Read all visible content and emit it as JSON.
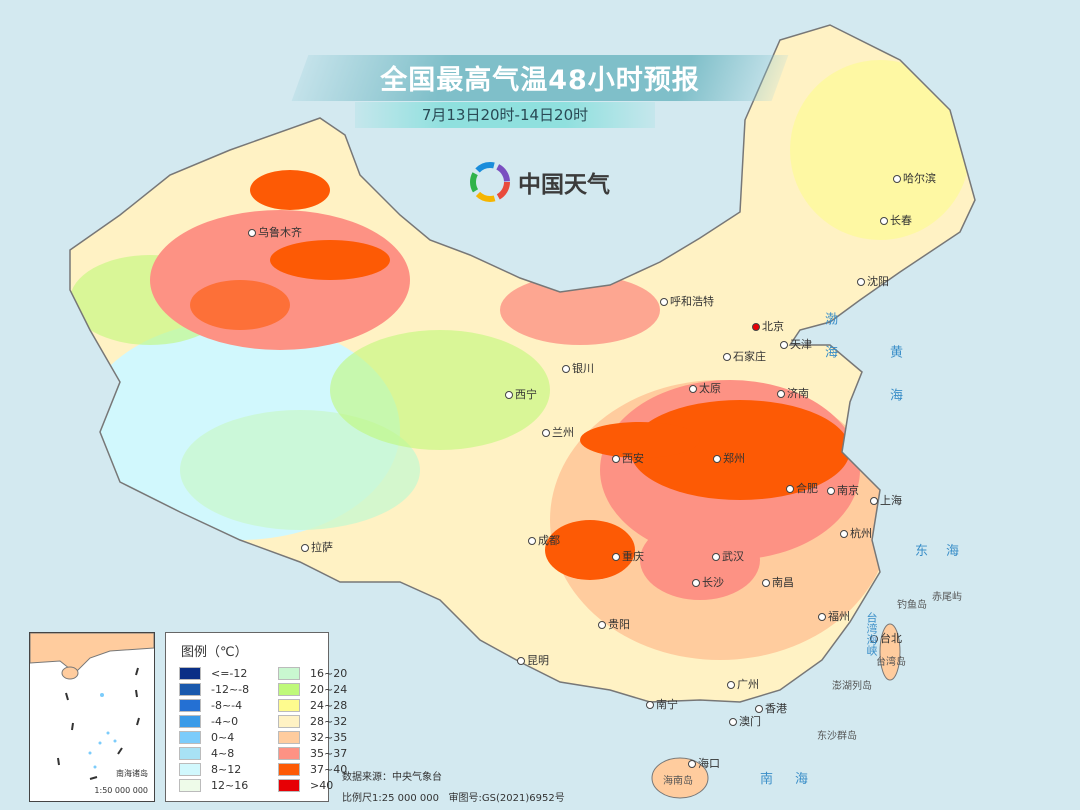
{
  "title": "全国最高气温48小时预报",
  "subtitle": "7月13日20时-14日20时",
  "logo": {
    "text": "中国天气",
    "icon": "china-weather-swirl-logo"
  },
  "cities": [
    {
      "name": "哈尔滨"
    },
    {
      "name": "长春"
    },
    {
      "name": "沈阳"
    },
    {
      "name": "北京"
    },
    {
      "name": "天津"
    },
    {
      "name": "呼和浩特"
    },
    {
      "name": "石家庄"
    },
    {
      "name": "太原"
    },
    {
      "name": "济南"
    },
    {
      "name": "银川"
    },
    {
      "name": "西宁"
    },
    {
      "name": "兰州"
    },
    {
      "name": "西安"
    },
    {
      "name": "郑州"
    },
    {
      "name": "合肥"
    },
    {
      "name": "南京"
    },
    {
      "name": "上海"
    },
    {
      "name": "杭州"
    },
    {
      "name": "武汉"
    },
    {
      "name": "成都"
    },
    {
      "name": "重庆"
    },
    {
      "name": "长沙"
    },
    {
      "name": "南昌"
    },
    {
      "name": "福州"
    },
    {
      "name": "台北"
    },
    {
      "name": "贵阳"
    },
    {
      "name": "昆明"
    },
    {
      "name": "南宁"
    },
    {
      "name": "广州"
    },
    {
      "name": "香港"
    },
    {
      "name": "澳门"
    },
    {
      "name": "海口"
    },
    {
      "name": "拉萨"
    },
    {
      "name": "乌鲁木齐"
    }
  ],
  "seas": {
    "bohai": "渤海",
    "huanghai": "黄海",
    "donghai": "东海",
    "nanhai": "南海",
    "taiwan_strait": "台湾海峡"
  },
  "islands": {
    "diaoyu": "钓鱼岛",
    "chiwei": "赤尾屿",
    "taiwan": "台湾岛",
    "penghu": "澎湖列岛",
    "dongsha": "东沙群岛",
    "hainan": "海南岛"
  },
  "legend": {
    "title": "图例（℃）",
    "items": [
      {
        "label": "<=-12",
        "color": "#0a2f86"
      },
      {
        "label": "-12~-8",
        "color": "#1a59ad"
      },
      {
        "label": "-8~-4",
        "color": "#2470d3"
      },
      {
        "label": "-4~0",
        "color": "#3a9be8"
      },
      {
        "label": "0~4",
        "color": "#7cccfb"
      },
      {
        "label": "4~8",
        "color": "#a8e2f5"
      },
      {
        "label": "8~12",
        "color": "#d1f8fd"
      },
      {
        "label": "12~16",
        "color": "#eefbe9"
      },
      {
        "label": "16~20",
        "color": "#c9f7d0"
      },
      {
        "label": "20~24",
        "color": "#bff97a"
      },
      {
        "label": "24~28",
        "color": "#fefb8e"
      },
      {
        "label": "28~32",
        "color": "#fff2c4"
      },
      {
        "label": "32~35",
        "color": "#ffcc9e"
      },
      {
        "label": "35~37",
        "color": "#fd9284"
      },
      {
        "label": "37~40",
        "color": "#fd5a05"
      },
      {
        "label": ">40",
        "color": "#e70005"
      }
    ]
  },
  "inset": {
    "name": "南海诸岛",
    "scale": "1:50 000 000"
  },
  "footer": {
    "source": "数据来源：中央气象台",
    "scale": "比例尺1:25 000 000",
    "approval": "审图号:GS(2021)6952号"
  }
}
